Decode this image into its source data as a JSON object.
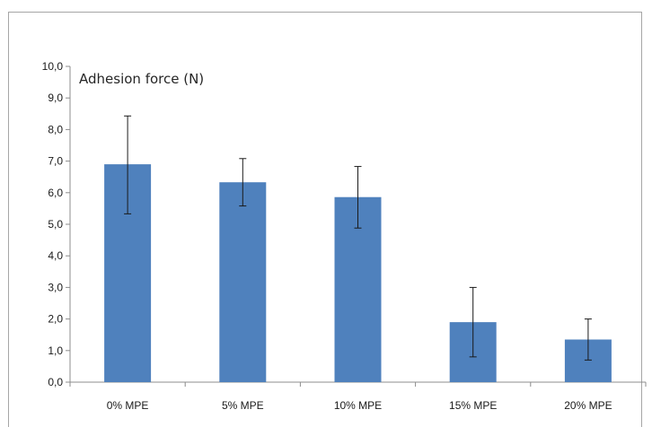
{
  "chart_data": {
    "type": "bar",
    "annotation": "Adhesion force (N)",
    "categories": [
      "0% MPE",
      "5% MPE",
      "10% MPE",
      "15% MPE",
      "20% MPE"
    ],
    "values": [
      6.9,
      6.33,
      5.86,
      1.9,
      1.35
    ],
    "error_high": [
      8.43,
      7.08,
      6.83,
      3.0,
      2.0
    ],
    "error_low": [
      5.33,
      5.58,
      4.88,
      0.8,
      0.7
    ],
    "yticks": [
      "0,0",
      "1,0",
      "2,0",
      "3,0",
      "4,0",
      "5,0",
      "6,0",
      "7,0",
      "8,0",
      "9,0",
      "10,0"
    ],
    "ylim": [
      0,
      10
    ],
    "ystep": 1,
    "grid": false,
    "legend": "none",
    "bar_color": "#4f81bd",
    "error_color": "#1a1a1a",
    "axis_color": "#8c8c8c"
  }
}
